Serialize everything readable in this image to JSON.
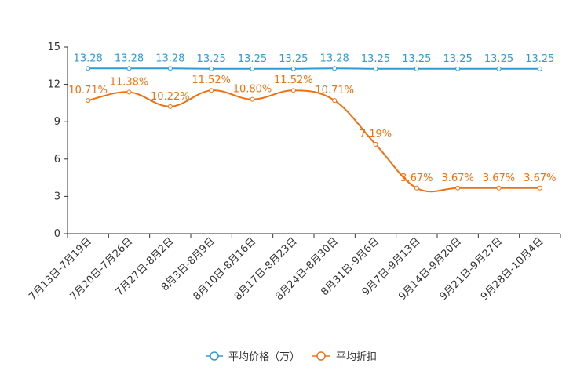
{
  "chart_data": {
    "type": "line",
    "title": "",
    "xlabel": "",
    "ylabel": "",
    "ylim": [
      0,
      15
    ],
    "yticks": [
      0,
      3,
      6,
      9,
      12,
      15
    ],
    "grid": false,
    "legend_position": "bottom-center",
    "categories": [
      "7月13日-7月19日",
      "7月20日-7月26日",
      "7月27日-8月2日",
      "8月3日-8月9日",
      "8月10日-8月16日",
      "8月17日-8月23日",
      "8月24日-8月30日",
      "8月31日-9月6日",
      "9月7日-9月13日",
      "9月14日-9月20日",
      "9月21日-9月27日",
      "9月28日-10月4日"
    ],
    "series": [
      {
        "name": "平均价格（万）",
        "color": "#2e9bd6",
        "values": [
          13.28,
          13.28,
          13.28,
          13.25,
          13.25,
          13.25,
          13.28,
          13.25,
          13.25,
          13.25,
          13.25,
          13.25
        ],
        "labels": [
          "13.28",
          "13.28",
          "13.28",
          "13.25",
          "13.25",
          "13.25",
          "13.28",
          "13.25",
          "13.25",
          "13.25",
          "13.25",
          "13.25"
        ]
      },
      {
        "name": "平均折扣",
        "color": "#f07010",
        "values": [
          10.71,
          11.38,
          10.22,
          11.52,
          10.8,
          11.52,
          10.71,
          7.19,
          3.67,
          3.67,
          3.67,
          3.67
        ],
        "labels": [
          "10.71%",
          "11.38%",
          "10.22%",
          "11.52%",
          "10.80%",
          "11.52%",
          "10.71%",
          "7.19%",
          "3.67%",
          "3.67%",
          "3.67%",
          "3.67%"
        ]
      }
    ]
  }
}
